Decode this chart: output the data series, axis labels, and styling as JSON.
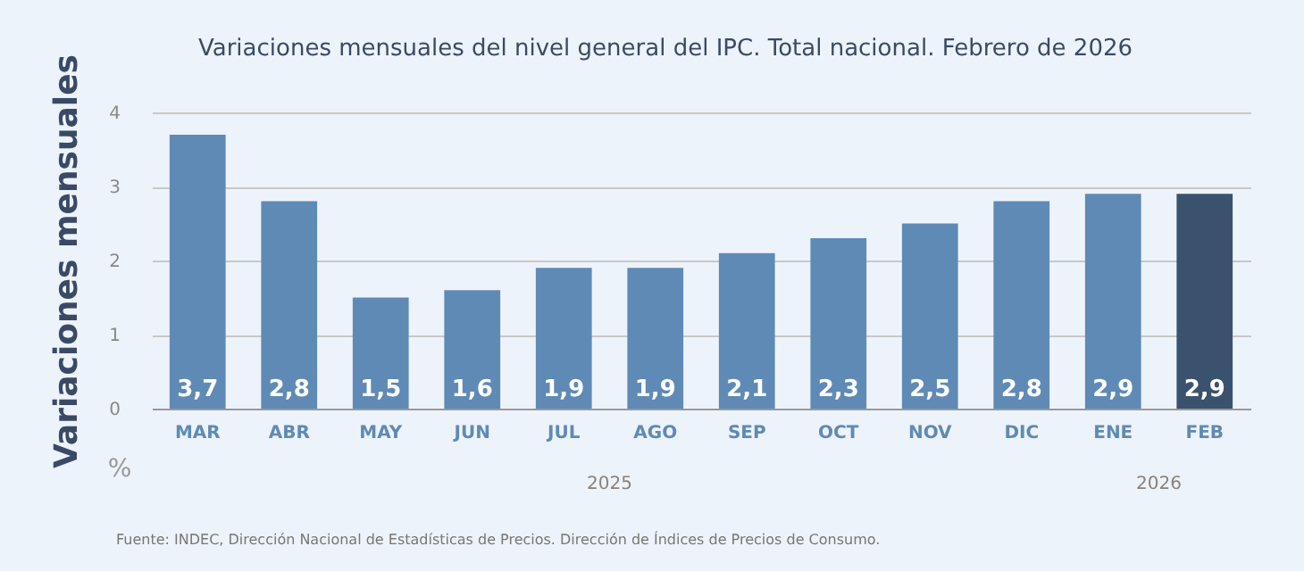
{
  "chart_data": {
    "type": "bar",
    "title": "Variaciones mensuales del nivel general del IPC. Total nacional. Febrero de 2026",
    "ylabel": "Variaciones mensuales",
    "categories": [
      "MAR",
      "ABR",
      "MAY",
      "JUN",
      "JUL",
      "AGO",
      "SEP",
      "OCT",
      "NOV",
      "DIC",
      "ENE",
      "FEB"
    ],
    "values": [
      3.7,
      2.8,
      1.5,
      1.6,
      1.9,
      1.9,
      2.1,
      2.3,
      2.5,
      2.8,
      2.9,
      2.9
    ],
    "value_labels": [
      "3,7",
      "2,8",
      "1,5",
      "1,6",
      "1,9",
      "1,9",
      "2,1",
      "2,3",
      "2,5",
      "2,8",
      "2,9",
      "2,9"
    ],
    "colors": [
      "#5f8ab5",
      "#5f8ab5",
      "#5f8ab5",
      "#5f8ab5",
      "#5f8ab5",
      "#5f8ab5",
      "#5f8ab5",
      "#5f8ab5",
      "#5f8ab5",
      "#5f8ab5",
      "#5f8ab5",
      "#3a526e"
    ],
    "ylim": [
      0,
      4
    ],
    "yticks": [
      0,
      1,
      2,
      3,
      4
    ],
    "grid": "y",
    "annotations": [
      "%",
      "2025",
      "2026",
      "Fuente: INDEC, Dirección Nacional de Estadísticas de Precios. Dirección de Índices de Precios de Consumo."
    ]
  }
}
